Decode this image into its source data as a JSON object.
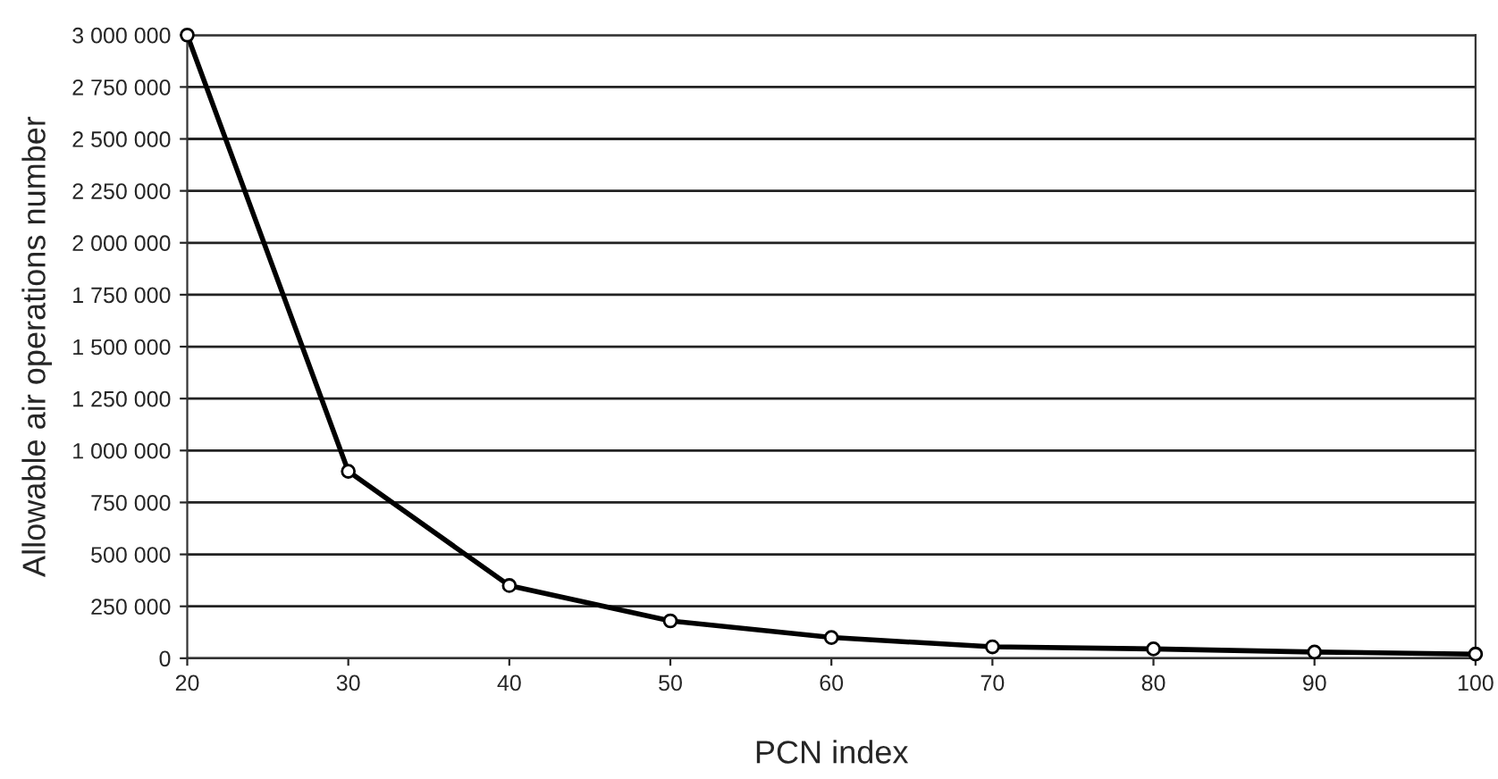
{
  "chart_data": {
    "type": "line",
    "xlabel": "PCN index",
    "ylabel": "Allowable air operations number",
    "x": [
      20,
      30,
      40,
      50,
      60,
      70,
      80,
      90,
      100
    ],
    "series": [
      {
        "color": "#000000",
        "values": [
          3000000,
          900000,
          350000,
          180000,
          100000,
          55000,
          45000,
          30000,
          20000
        ]
      }
    ],
    "xlim": [
      20,
      100
    ],
    "xticks": [
      20,
      30,
      40,
      50,
      60,
      70,
      80,
      90,
      100
    ],
    "ylim": [
      0,
      3000000
    ],
    "yticks": [
      {
        "value": 0,
        "label": "0"
      },
      {
        "value": 250000,
        "label": "250 000"
      },
      {
        "value": 500000,
        "label": "500 000"
      },
      {
        "value": 750000,
        "label": "750 000"
      },
      {
        "value": 1000000,
        "label": "1 000 000"
      },
      {
        "value": 1250000,
        "label": "1 250 000"
      },
      {
        "value": 1500000,
        "label": "1 500 000"
      },
      {
        "value": 1750000,
        "label": "1 750 000"
      },
      {
        "value": 2000000,
        "label": "2 000 000"
      },
      {
        "value": 2250000,
        "label": "2 250 000"
      },
      {
        "value": 2500000,
        "label": "2 500 000"
      },
      {
        "value": 2750000,
        "label": "2 750 000"
      },
      {
        "value": 3000000,
        "label": "3 000 000"
      }
    ],
    "grid": "y",
    "marker": "circle",
    "line_style": "solid"
  }
}
